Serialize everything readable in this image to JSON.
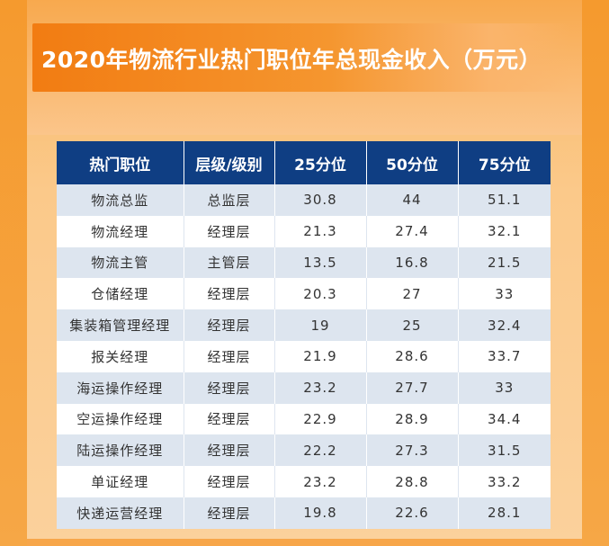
{
  "title": "2020年物流行业热门职位年总现金收入（万元）",
  "table": {
    "headers": [
      "热门职位",
      "层级/级别",
      "25分位",
      "50分位",
      "75分位"
    ],
    "rows": [
      [
        "物流总监",
        "总监层",
        "30.8",
        "44",
        "51.1"
      ],
      [
        "物流经理",
        "经理层",
        "21.3",
        "27.4",
        "32.1"
      ],
      [
        "物流主管",
        "主管层",
        "13.5",
        "16.8",
        "21.5"
      ],
      [
        "仓储经理",
        "经理层",
        "20.3",
        "27",
        "33"
      ],
      [
        "集装箱管理经理",
        "经理层",
        "19",
        "25",
        "32.4"
      ],
      [
        "报关经理",
        "经理层",
        "21.9",
        "28.6",
        "33.7"
      ],
      [
        "海运操作经理",
        "经理层",
        "23.2",
        "27.7",
        "33"
      ],
      [
        "空运操作经理",
        "经理层",
        "22.9",
        "28.9",
        "34.4"
      ],
      [
        "陆运操作经理",
        "经理层",
        "22.2",
        "27.3",
        "31.5"
      ],
      [
        "单证经理",
        "经理层",
        "23.2",
        "28.8",
        "33.2"
      ],
      [
        "快递运营经理",
        "经理层",
        "19.8",
        "22.6",
        "28.1"
      ]
    ]
  },
  "colors": {
    "header_bg": "#0f3e83",
    "row_stripe": "#dde5ef",
    "title_bar": "#f27c12",
    "background": "#f9b866"
  }
}
